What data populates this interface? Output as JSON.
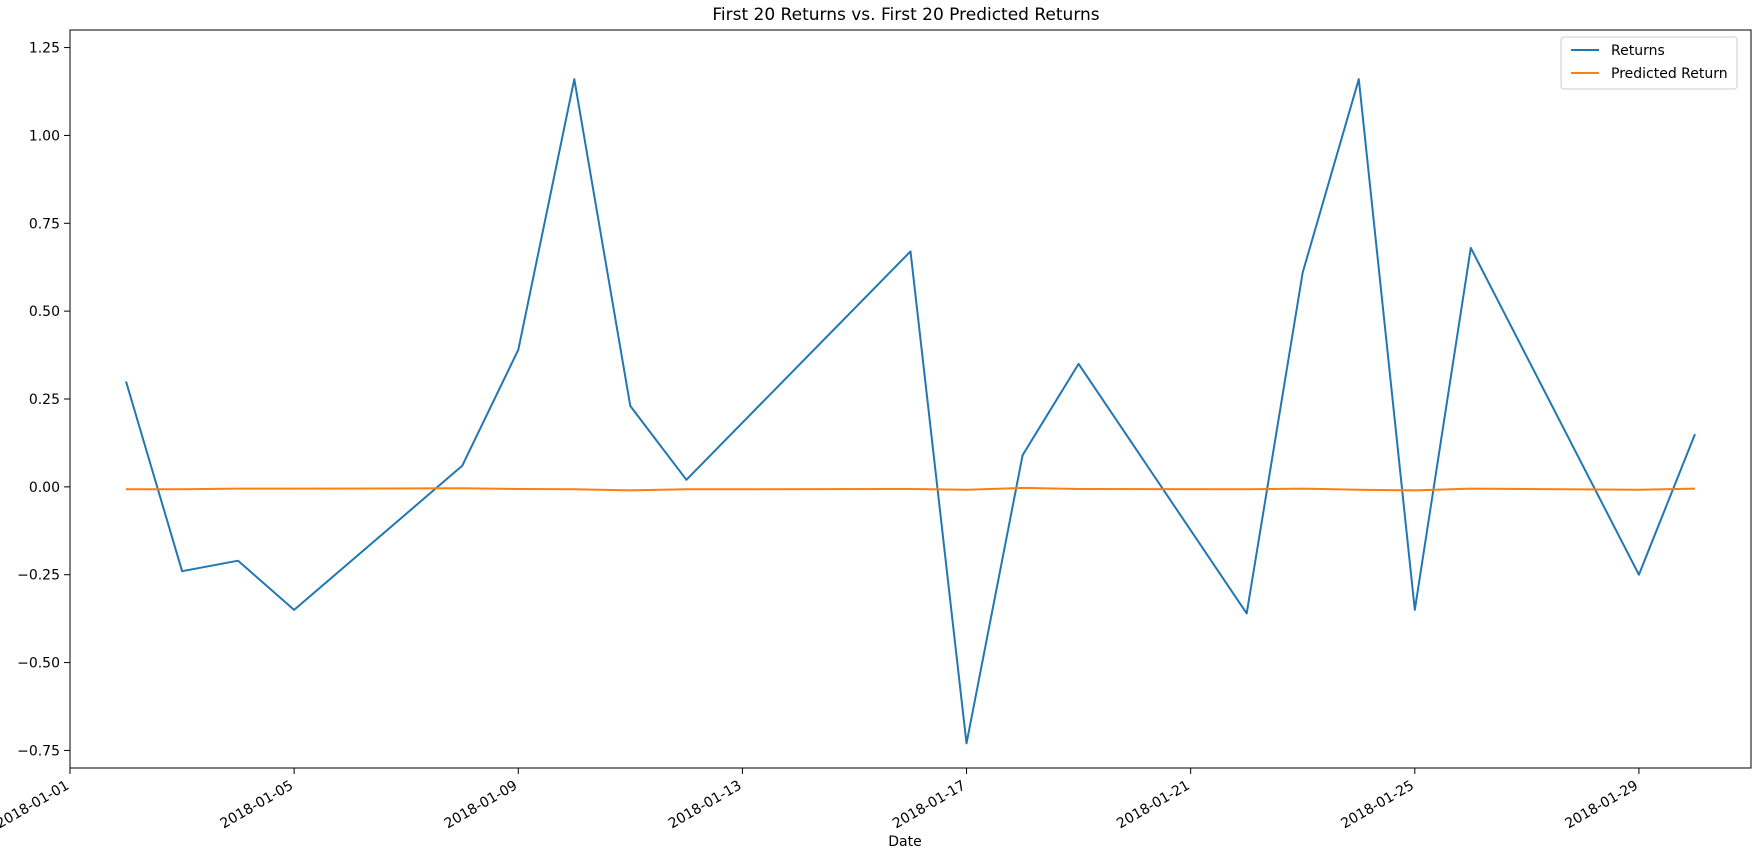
{
  "chart_data": {
    "type": "line",
    "title": "First 20 Returns vs. First 20 Predicted Returns",
    "xlabel": "Date",
    "ylabel": "",
    "xlim": [
      "2018-01-01",
      "2018-01-31"
    ],
    "ylim": [
      -0.8,
      1.3
    ],
    "x_ticks": [
      "2018-01-01",
      "2018-01-05",
      "2018-01-09",
      "2018-01-13",
      "2018-01-17",
      "2018-01-21",
      "2018-01-25",
      "2018-01-29"
    ],
    "y_ticks": [
      "1.25",
      "1.00",
      "0.75",
      "0.50",
      "0.25",
      "0.00",
      "−0.25",
      "−0.50",
      "−0.75"
    ],
    "y_tick_values": [
      1.25,
      1.0,
      0.75,
      0.5,
      0.25,
      0.0,
      -0.25,
      -0.5,
      -0.75
    ],
    "grid": false,
    "legend_position": "top-right",
    "x": [
      "2018-01-02",
      "2018-01-03",
      "2018-01-04",
      "2018-01-05",
      "2018-01-08",
      "2018-01-09",
      "2018-01-10",
      "2018-01-11",
      "2018-01-12",
      "2018-01-16",
      "2018-01-17",
      "2018-01-18",
      "2018-01-19",
      "2018-01-22",
      "2018-01-23",
      "2018-01-24",
      "2018-01-25",
      "2018-01-26",
      "2018-01-29",
      "2018-01-30"
    ],
    "series": [
      {
        "name": "Returns",
        "color": "#1f77b4",
        "values": [
          0.3,
          -0.24,
          -0.21,
          -0.35,
          0.06,
          0.39,
          1.16,
          0.23,
          0.02,
          0.67,
          -0.73,
          0.09,
          0.35,
          -0.36,
          0.61,
          1.16,
          -0.35,
          0.68,
          -0.25,
          0.15
        ]
      },
      {
        "name": "Predicted Return",
        "color": "#ff7f0e",
        "values": [
          -0.007,
          -0.007,
          -0.005,
          -0.005,
          -0.004,
          -0.006,
          -0.007,
          -0.01,
          -0.007,
          -0.006,
          -0.008,
          -0.003,
          -0.006,
          -0.007,
          -0.005,
          -0.008,
          -0.01,
          -0.005,
          -0.008,
          -0.005
        ]
      }
    ]
  }
}
